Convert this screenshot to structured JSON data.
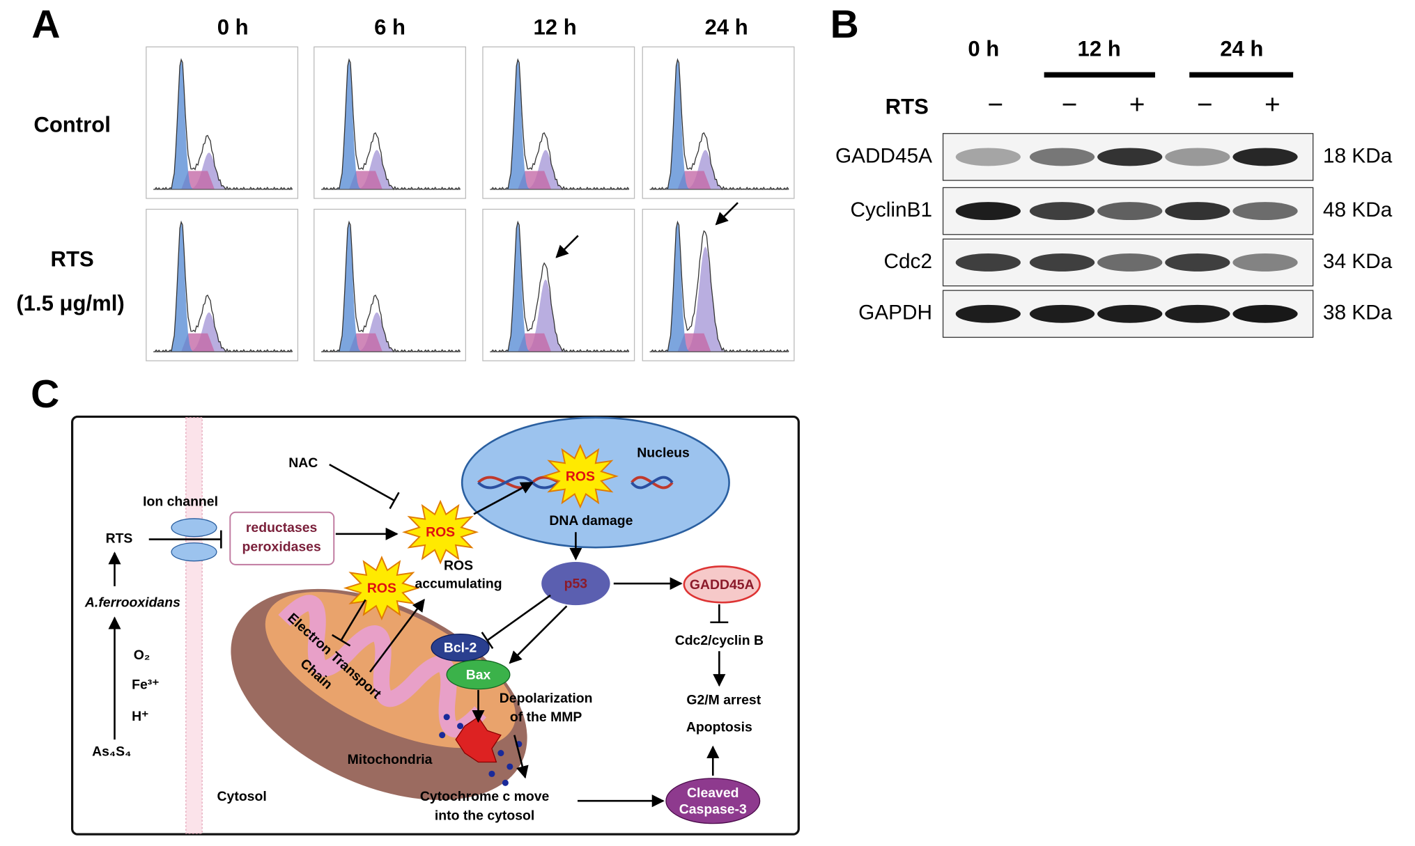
{
  "panel_a": {
    "label": "A",
    "columns": [
      "0 h",
      "6 h",
      "12 h",
      "24 h"
    ],
    "rows": [
      "Control",
      "RTS"
    ],
    "row_note": "(1.5 μg/ml)"
  },
  "panel_b": {
    "label": "B",
    "times": [
      "0 h",
      "12 h",
      "24 h"
    ],
    "treatment_label": "RTS",
    "treatment": [
      "−",
      "−",
      "+",
      "−",
      "+"
    ],
    "proteins": [
      {
        "name": "GADD45A",
        "size": "18 KDa"
      },
      {
        "name": "CyclinB1",
        "size": "48 KDa"
      },
      {
        "name": "Cdc2",
        "size": "34 KDa"
      },
      {
        "name": "GAPDH",
        "size": "38 KDa"
      }
    ]
  },
  "panel_c": {
    "label": "C",
    "nac": "NAC",
    "nucleus": "Nucleus",
    "ros": [
      "ROS",
      "ROS",
      "ROS"
    ],
    "dna_damage": "DNA damage",
    "ion_channel": "Ion channel",
    "rts": "RTS",
    "enzymes": [
      "reductases",
      "peroxidases"
    ],
    "ros_accumulating": [
      "ROS",
      "accumulating"
    ],
    "p53": "p53",
    "gadd45a": "GADD45A",
    "cdc2_cyclin_b": "Cdc2/cyclin B",
    "outcomes": [
      "G2/M arrest",
      "Apoptosis"
    ],
    "bcl2": "Bcl-2",
    "bax": "Bax",
    "depolarization": [
      "Depolarization",
      "of the MMP"
    ],
    "etc": [
      "Electron Transport",
      "Chain"
    ],
    "mitochondria": "Mitochondria",
    "cytosol": "Cytosol",
    "cytochrome": [
      "Cytochrome c move",
      "into the cytosol"
    ],
    "caspase": [
      "Cleaved",
      "Caspase-3"
    ],
    "bacterium": "A.ferrooxidans",
    "reactants": [
      "O₂",
      "Fe³⁺",
      "H⁺",
      "As₄S₄"
    ]
  }
}
